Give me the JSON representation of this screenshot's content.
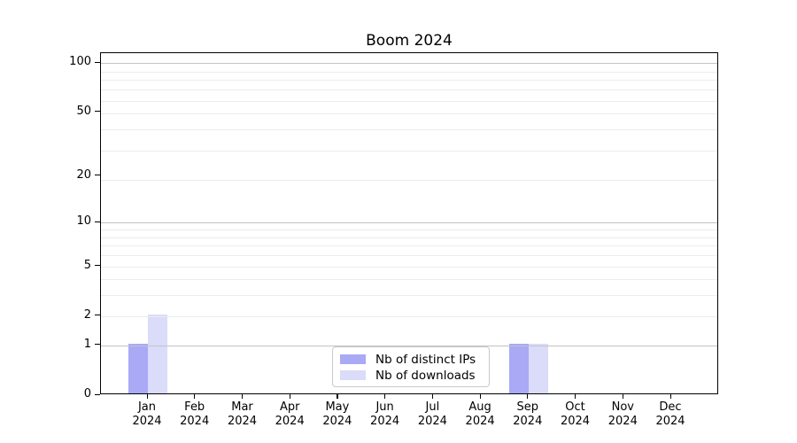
{
  "chart_data": {
    "type": "bar",
    "title": "Boom 2024",
    "categories": [
      {
        "line1": "Jan",
        "line2": "2024"
      },
      {
        "line1": "Feb",
        "line2": "2024"
      },
      {
        "line1": "Mar",
        "line2": "2024"
      },
      {
        "line1": "Apr",
        "line2": "2024"
      },
      {
        "line1": "May",
        "line2": "2024"
      },
      {
        "line1": "Jun",
        "line2": "2024"
      },
      {
        "line1": "Jul",
        "line2": "2024"
      },
      {
        "line1": "Aug",
        "line2": "2024"
      },
      {
        "line1": "Sep",
        "line2": "2024"
      },
      {
        "line1": "Oct",
        "line2": "2024"
      },
      {
        "line1": "Nov",
        "line2": "2024"
      },
      {
        "line1": "Dec",
        "line2": "2024"
      }
    ],
    "series": [
      {
        "name": "Nb of distinct IPs",
        "color": "#a9a9f6",
        "values": [
          1,
          0,
          0,
          0,
          0,
          0,
          0,
          0,
          1,
          0,
          0,
          0
        ]
      },
      {
        "name": "Nb of downloads",
        "color": "#dbdbfa",
        "values": [
          2,
          0,
          0,
          0,
          0,
          0,
          0,
          0,
          1,
          0,
          0,
          0
        ]
      }
    ],
    "y_axis": {
      "scale": "log10(1+v)",
      "tick_values": [
        0,
        1,
        2,
        5,
        10,
        20,
        50,
        100
      ],
      "tick_labels": [
        "0",
        "1",
        "2",
        "5",
        "10",
        "20",
        "50",
        "100"
      ],
      "major_gridline_values": [
        1,
        10,
        100
      ],
      "minor_gridline_one_plus_v": [
        3,
        4,
        5,
        6,
        7,
        8,
        9,
        10,
        20,
        30,
        40,
        50,
        60,
        70,
        80,
        90
      ]
    },
    "legend": {
      "position": "lower center",
      "entries": [
        "Nb of distinct IPs",
        "Nb of downloads"
      ]
    },
    "grid": true,
    "background_color": "#ffffff",
    "spine_color": "#000000",
    "gridline_minor_color": "#ececec",
    "gridline_major_color": "#c3c3c3"
  }
}
